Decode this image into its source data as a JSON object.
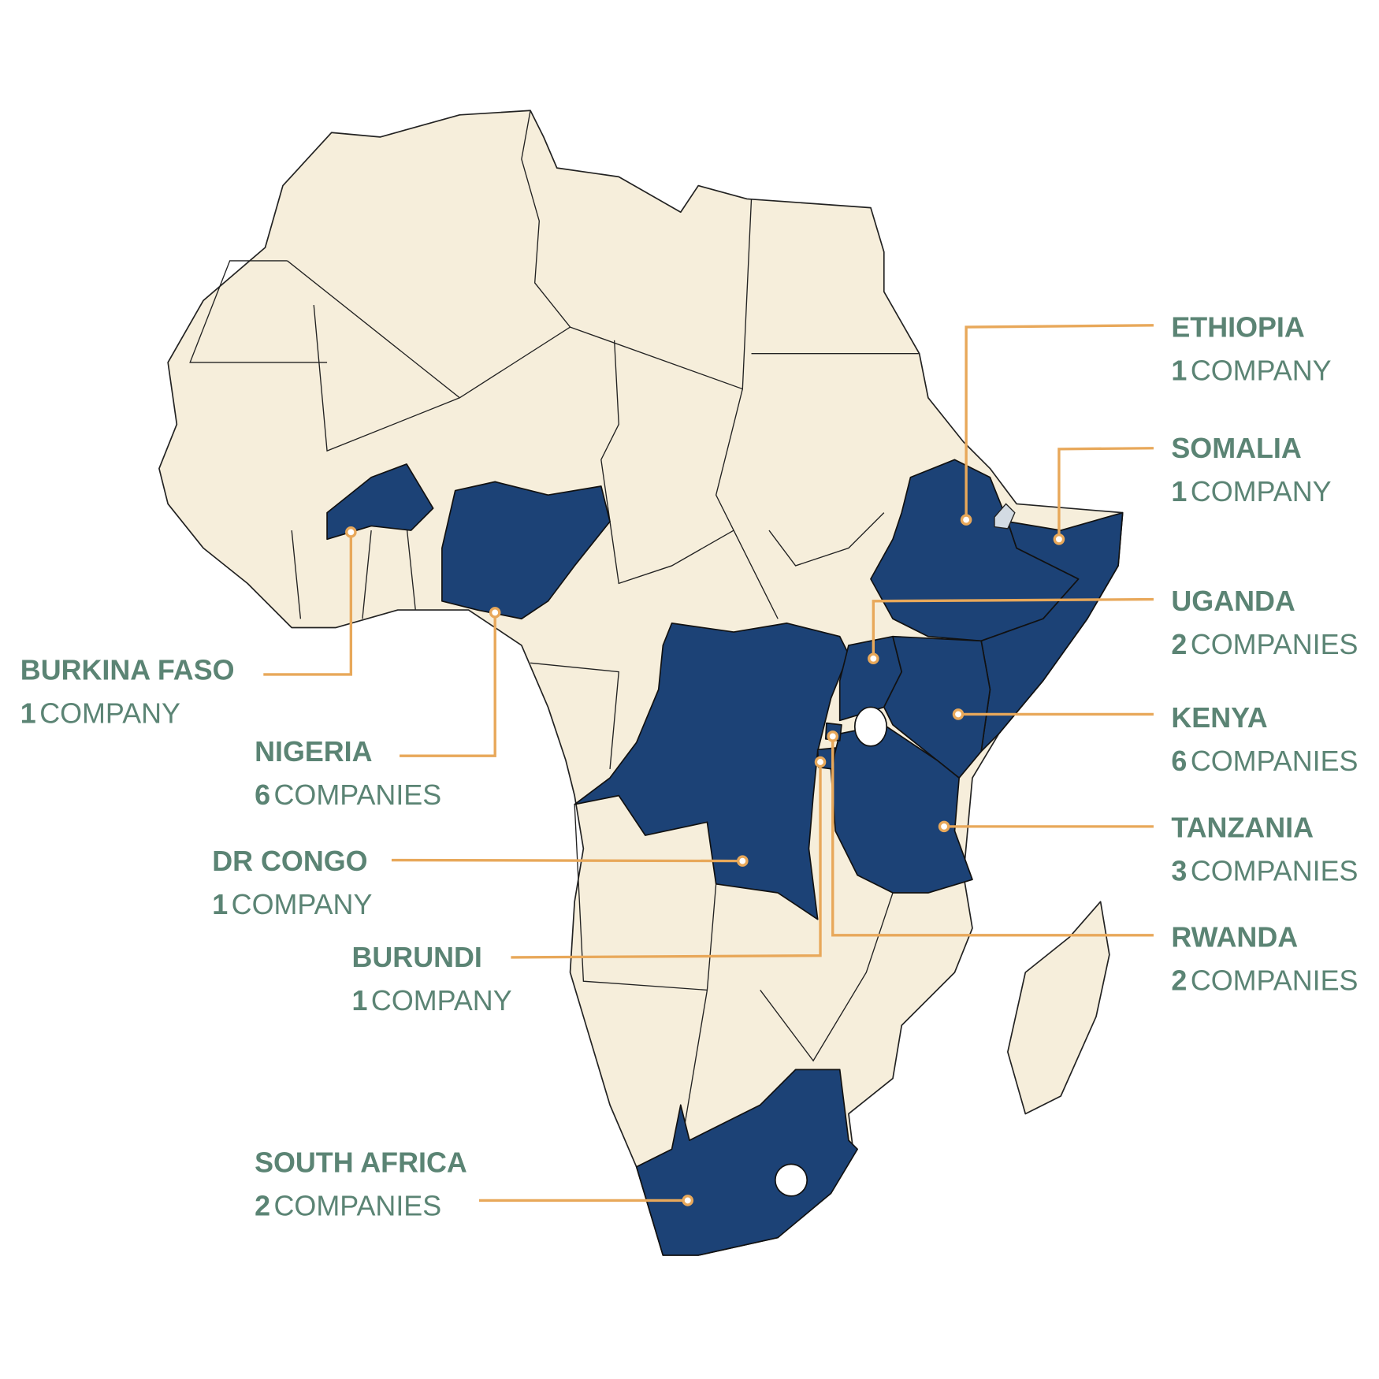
{
  "labels": [
    {
      "name": "ETHIOPIA",
      "count": 1,
      "unit": "COMPANY"
    },
    {
      "name": "SOMALIA",
      "count": 1,
      "unit": "COMPANY"
    },
    {
      "name": "UGANDA",
      "count": 2,
      "unit": "COMPANIES"
    },
    {
      "name": "KENYA",
      "count": 6,
      "unit": "COMPANIES"
    },
    {
      "name": "TANZANIA",
      "count": 3,
      "unit": "COMPANIES"
    },
    {
      "name": "RWANDA",
      "count": 2,
      "unit": "COMPANIES"
    },
    {
      "name": "BURKINA FASO",
      "count": 1,
      "unit": "COMPANY"
    },
    {
      "name": "NIGERIA",
      "count": 6,
      "unit": "COMPANIES"
    },
    {
      "name": "DR CONGO",
      "count": 1,
      "unit": "COMPANY"
    },
    {
      "name": "BURUNDI",
      "count": 1,
      "unit": "COMPANY"
    },
    {
      "name": "SOUTH AFRICA",
      "count": 2,
      "unit": "COMPANIES"
    }
  ]
}
